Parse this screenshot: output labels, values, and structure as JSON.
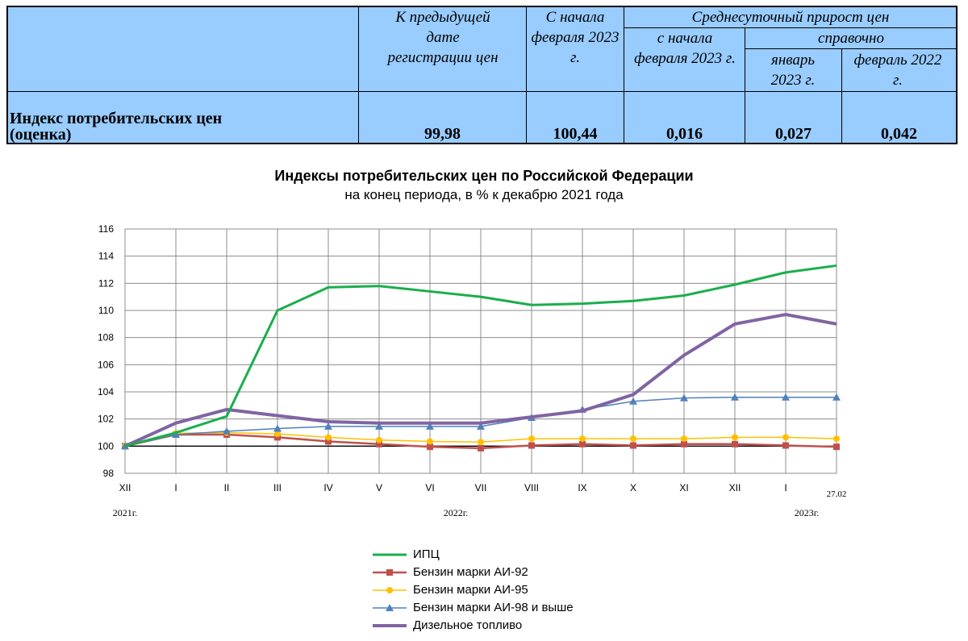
{
  "table": {
    "headers": {
      "prev_date": "К предыдущей дате регистрации цен",
      "since_feb": "С начала февраля 2023 г.",
      "avg_daily": "Среднесуточный прирост цен",
      "avg_since_feb": "с начала февраля 2023 г.",
      "reference": "справочно",
      "jan_2023": "январь 2023 г.",
      "feb_2022": "февраль 2022 г."
    },
    "row": {
      "label": "Индекс потребительских цен (оценка)",
      "prev_date": "99,98",
      "since_feb": "100,44",
      "avg_since_feb": "0,016",
      "jan_2023": "0,027",
      "feb_2022": "0,042"
    },
    "colors": {
      "background": "#99ccff"
    }
  },
  "chart_data": {
    "type": "line",
    "title": "Индексы потребительских цен по Российской Федерации",
    "subtitle": "на конец периода, в % к декабрю 2021 года",
    "categories": [
      "XII",
      "I",
      "II",
      "III",
      "IV",
      "V",
      "VI",
      "VII",
      "VIII",
      "IX",
      "X",
      "XI",
      "XII",
      "I",
      "27.02"
    ],
    "year_labels": [
      "2021г.",
      "2022г.",
      "2023г."
    ],
    "ylim": [
      98,
      116
    ],
    "yticks": [
      98,
      100,
      102,
      104,
      106,
      108,
      110,
      112,
      114,
      116
    ],
    "grid": true,
    "baseline": 100,
    "legend_position": "bottom",
    "series": [
      {
        "name": "ИПЦ",
        "color": "#1aae4d",
        "marker": "none",
        "values": [
          100.0,
          100.99,
          102.2,
          110.0,
          111.7,
          111.8,
          111.4,
          111.0,
          110.4,
          110.5,
          110.7,
          111.1,
          111.9,
          112.8,
          113.3
        ]
      },
      {
        "name": "Бензин марки АИ-92",
        "color": "#c0504d",
        "marker": "square",
        "values": [
          100.0,
          100.85,
          100.85,
          100.65,
          100.35,
          100.15,
          99.95,
          99.85,
          100.05,
          100.15,
          100.05,
          100.15,
          100.15,
          100.05,
          99.95
        ]
      },
      {
        "name": "Бензин марки АИ-95",
        "color": "#ffc000",
        "marker": "circle",
        "values": [
          100.0,
          100.95,
          101.0,
          100.9,
          100.65,
          100.45,
          100.35,
          100.3,
          100.55,
          100.55,
          100.55,
          100.55,
          100.65,
          100.65,
          100.55
        ]
      },
      {
        "name": "Бензин марки АИ-98 и выше",
        "color": "#4f81bd",
        "marker": "triangle",
        "values": [
          100.0,
          100.85,
          101.1,
          101.3,
          101.45,
          101.45,
          101.45,
          101.45,
          102.1,
          102.7,
          103.3,
          103.55,
          103.6,
          103.6,
          103.6
        ]
      },
      {
        "name": "Дизельное топливо",
        "color": "#8064a2",
        "marker": "none",
        "values": [
          100.0,
          101.7,
          102.7,
          102.25,
          101.8,
          101.7,
          101.7,
          101.7,
          102.15,
          102.6,
          103.8,
          106.7,
          109.0,
          109.7,
          109.0
        ]
      }
    ]
  }
}
